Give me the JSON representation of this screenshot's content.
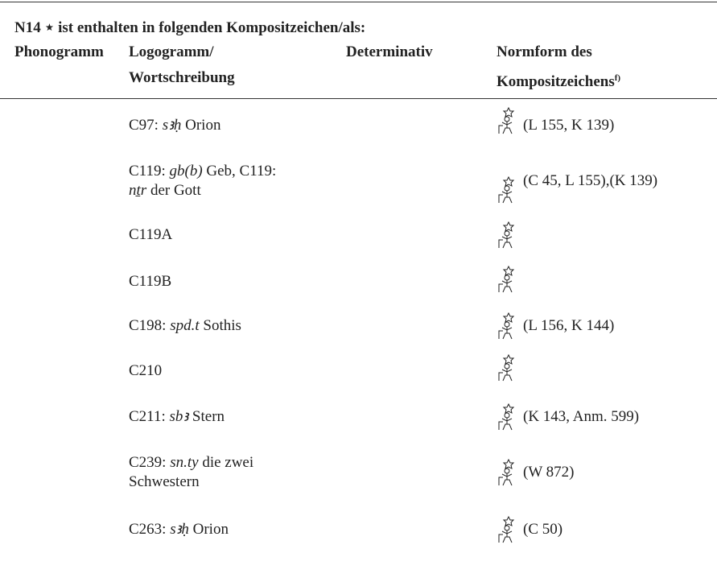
{
  "header": {
    "title": "N14 ⋆ ist enthalten in folgenden Kompositzeichen/als:",
    "columns": {
      "phonogramm": "Phonogramm",
      "logogramm": [
        "Logogramm/",
        "Wortschreibung"
      ],
      "determinativ": "Determinativ",
      "normform": [
        "Normform des",
        "Kompositzeichens"
      ],
      "footnote": "f)"
    }
  },
  "table": {
    "rows": [
      {
        "logogramm": [
          [
            {
              "t": "C97: "
            },
            {
              "t": "sꜣḥ",
              "i": true
            },
            {
              "t": " Orion"
            }
          ]
        ],
        "normform": "(L 155, K 139)"
      },
      {
        "logogramm": [
          [
            {
              "t": "C119: "
            },
            {
              "t": "gb(b)",
              "i": true
            },
            {
              "t": " Geb, C119:"
            }
          ],
          [
            {
              "t": "nṯr",
              "i": true
            },
            {
              "t": " der Gott"
            }
          ]
        ],
        "normform": "(C 45, L 155),(K 139)"
      },
      {
        "logogramm": [
          [
            {
              "t": "C119A"
            }
          ]
        ],
        "normform": null
      },
      {
        "logogramm": [
          [
            {
              "t": "C119B"
            }
          ]
        ],
        "normform": null
      },
      {
        "logogramm": [
          [
            {
              "t": "C198: "
            },
            {
              "t": "spd.t",
              "i": true
            },
            {
              "t": " Sothis"
            }
          ]
        ],
        "normform": "(L 156, K 144)"
      },
      {
        "logogramm": [
          [
            {
              "t": "C210"
            }
          ]
        ],
        "normform": null
      },
      {
        "logogramm": [
          [
            {
              "t": "C211: "
            },
            {
              "t": "sbꜣ",
              "i": true
            },
            {
              "t": " Stern"
            }
          ]
        ],
        "normform": "(K 143, Anm. 599)"
      },
      {
        "logogramm": [
          [
            {
              "t": "C239: "
            },
            {
              "t": "sn.ty",
              "i": true
            },
            {
              "t": " die zwei"
            }
          ],
          [
            {
              "t": "Schwestern"
            }
          ]
        ],
        "normform": "(W 872)"
      },
      {
        "logogramm": [
          [
            {
              "t": "C263: "
            },
            {
              "t": "sꜣḥ",
              "i": true
            },
            {
              "t": " Orion"
            }
          ]
        ],
        "normform": "(C 50)"
      }
    ]
  }
}
